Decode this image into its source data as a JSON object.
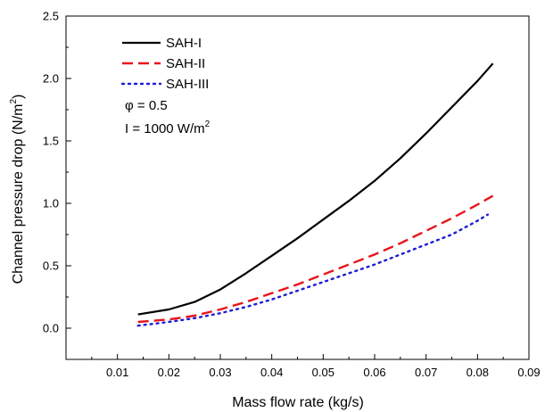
{
  "chart_data": {
    "type": "line",
    "xlabel": "Mass flow rate (kg/s)",
    "ylabel_main": "Channel pressure drop (N/m",
    "ylabel_sup": "2",
    "ylabel_tail": ")",
    "xlim": [
      0.0,
      0.09
    ],
    "ylim": [
      -0.25,
      2.5
    ],
    "xticks": [
      0.01,
      0.02,
      0.03,
      0.04,
      0.05,
      0.06,
      0.07,
      0.08,
      0.09
    ],
    "xtick_labels": [
      "0.01",
      "0.02",
      "0.03",
      "0.04",
      "0.05",
      "0.06",
      "0.07",
      "0.08",
      "0.09"
    ],
    "yticks": [
      0.0,
      0.5,
      1.0,
      1.5,
      2.0,
      2.5
    ],
    "ytick_labels": [
      "0.0",
      "0.5",
      "1.0",
      "1.5",
      "2.0",
      "2.5"
    ],
    "grid": false,
    "legend_position": "top-left",
    "series": [
      {
        "name": "SAH-I",
        "color": "#000000",
        "style": "solid",
        "x": [
          0.014,
          0.02,
          0.025,
          0.03,
          0.035,
          0.04,
          0.045,
          0.05,
          0.055,
          0.06,
          0.065,
          0.07,
          0.075,
          0.08,
          0.083
        ],
        "y": [
          0.11,
          0.15,
          0.21,
          0.31,
          0.44,
          0.58,
          0.72,
          0.87,
          1.02,
          1.18,
          1.36,
          1.56,
          1.77,
          1.98,
          2.12
        ]
      },
      {
        "name": "SAH-II",
        "color": "#e8141b",
        "style": "dashed",
        "x": [
          0.014,
          0.02,
          0.025,
          0.03,
          0.035,
          0.04,
          0.045,
          0.05,
          0.055,
          0.06,
          0.065,
          0.07,
          0.075,
          0.08,
          0.083
        ],
        "y": [
          0.05,
          0.07,
          0.1,
          0.15,
          0.21,
          0.28,
          0.35,
          0.43,
          0.51,
          0.59,
          0.68,
          0.78,
          0.88,
          0.99,
          1.06
        ]
      },
      {
        "name": "SAH-III",
        "color": "#1d1dd4",
        "style": "dotted",
        "x": [
          0.014,
          0.02,
          0.025,
          0.03,
          0.035,
          0.04,
          0.045,
          0.05,
          0.055,
          0.06,
          0.065,
          0.07,
          0.075,
          0.08,
          0.082
        ],
        "y": [
          0.02,
          0.05,
          0.08,
          0.12,
          0.17,
          0.23,
          0.3,
          0.37,
          0.44,
          0.51,
          0.59,
          0.67,
          0.75,
          0.86,
          0.91
        ]
      }
    ],
    "annotations": [
      {
        "text": "φ = 0.5"
      },
      {
        "text": "I = 1000 W/m",
        "sup": "2"
      }
    ]
  }
}
